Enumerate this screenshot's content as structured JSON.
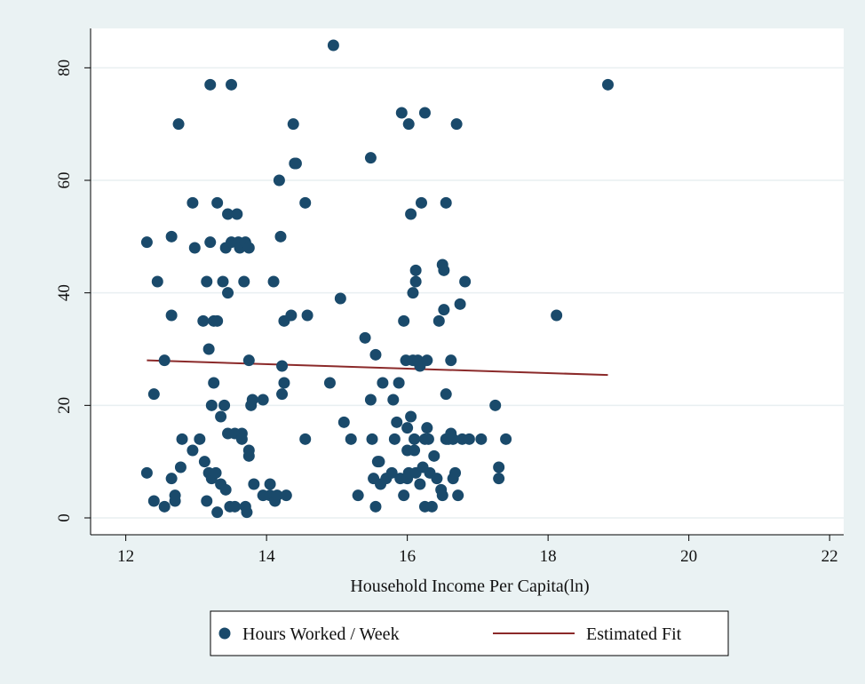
{
  "chart_data": {
    "type": "scatter",
    "title": "",
    "xlabel": "Household Income Per Capita(ln)",
    "ylabel": "",
    "xlim": [
      11.5,
      22.2
    ],
    "ylim": [
      -3,
      87
    ],
    "x_ticks": [
      "12",
      "14",
      "16",
      "18",
      "20",
      "22"
    ],
    "y_ticks": [
      "0",
      "20",
      "40",
      "60",
      "80"
    ],
    "grid": true,
    "legend_position": "bottom",
    "colors": {
      "points": "#1a4a6b",
      "fit": "#8b2a2a",
      "plot_bg": "#ffffff",
      "outer_bg": "#eaf2f3"
    },
    "series": [
      {
        "name": "Hours Worked / Week",
        "kind": "scatter",
        "points": [
          [
            12.3,
            49
          ],
          [
            12.3,
            8
          ],
          [
            12.4,
            3
          ],
          [
            12.4,
            22
          ],
          [
            12.45,
            42
          ],
          [
            12.55,
            28
          ],
          [
            12.55,
            2
          ],
          [
            12.65,
            36
          ],
          [
            12.65,
            50
          ],
          [
            12.7,
            4
          ],
          [
            12.7,
            3
          ],
          [
            12.75,
            70
          ],
          [
            12.78,
            9
          ],
          [
            12.8,
            14
          ],
          [
            12.65,
            7
          ],
          [
            12.95,
            56
          ],
          [
            12.95,
            12
          ],
          [
            12.98,
            48
          ],
          [
            13.05,
            14
          ],
          [
            13.1,
            35
          ],
          [
            13.12,
            10
          ],
          [
            13.15,
            42
          ],
          [
            13.15,
            3
          ],
          [
            13.18,
            8
          ],
          [
            13.18,
            30
          ],
          [
            13.2,
            49
          ],
          [
            13.2,
            77
          ],
          [
            13.22,
            20
          ],
          [
            13.22,
            7
          ],
          [
            13.25,
            24
          ],
          [
            13.25,
            35
          ],
          [
            13.28,
            8
          ],
          [
            13.3,
            35
          ],
          [
            13.3,
            1
          ],
          [
            13.3,
            56
          ],
          [
            13.35,
            18
          ],
          [
            13.35,
            6
          ],
          [
            13.38,
            42
          ],
          [
            13.4,
            20
          ],
          [
            13.42,
            5
          ],
          [
            13.42,
            48
          ],
          [
            13.45,
            40
          ],
          [
            13.45,
            54
          ],
          [
            13.45,
            15
          ],
          [
            13.48,
            2
          ],
          [
            13.5,
            49
          ],
          [
            13.5,
            77
          ],
          [
            13.55,
            15
          ],
          [
            13.55,
            2
          ],
          [
            13.58,
            54
          ],
          [
            13.6,
            49
          ],
          [
            13.62,
            48
          ],
          [
            13.65,
            15
          ],
          [
            13.65,
            14
          ],
          [
            13.68,
            42
          ],
          [
            13.7,
            2
          ],
          [
            13.7,
            49
          ],
          [
            13.72,
            1
          ],
          [
            13.75,
            11
          ],
          [
            13.75,
            48
          ],
          [
            13.78,
            20
          ],
          [
            13.8,
            21
          ],
          [
            13.82,
            6
          ],
          [
            13.75,
            28
          ],
          [
            13.75,
            12
          ],
          [
            13.95,
            21
          ],
          [
            13.95,
            4
          ],
          [
            14.05,
            6
          ],
          [
            14.05,
            4
          ],
          [
            14.1,
            42
          ],
          [
            14.12,
            3
          ],
          [
            14.15,
            4
          ],
          [
            14.18,
            60
          ],
          [
            14.2,
            50
          ],
          [
            14.22,
            22
          ],
          [
            14.22,
            27
          ],
          [
            14.25,
            35
          ],
          [
            14.25,
            24
          ],
          [
            14.28,
            4
          ],
          [
            14.35,
            36
          ],
          [
            14.38,
            70
          ],
          [
            14.4,
            63
          ],
          [
            14.42,
            63
          ],
          [
            14.55,
            56
          ],
          [
            14.55,
            14
          ],
          [
            14.58,
            36
          ],
          [
            14.9,
            24
          ],
          [
            14.95,
            84
          ],
          [
            15.05,
            39
          ],
          [
            15.1,
            17
          ],
          [
            15.2,
            14
          ],
          [
            15.3,
            4
          ],
          [
            15.4,
            32
          ],
          [
            15.48,
            21
          ],
          [
            15.48,
            64
          ],
          [
            15.5,
            14
          ],
          [
            15.52,
            7
          ],
          [
            15.55,
            29
          ],
          [
            15.55,
            2
          ],
          [
            15.58,
            10
          ],
          [
            15.6,
            10
          ],
          [
            15.62,
            6
          ],
          [
            15.65,
            24
          ],
          [
            15.7,
            7
          ],
          [
            15.78,
            8
          ],
          [
            15.8,
            21
          ],
          [
            15.82,
            14
          ],
          [
            15.85,
            17
          ],
          [
            15.88,
            24
          ],
          [
            15.9,
            7
          ],
          [
            15.92,
            72
          ],
          [
            15.95,
            35
          ],
          [
            15.95,
            4
          ],
          [
            15.98,
            28
          ],
          [
            16.0,
            16
          ],
          [
            16.0,
            12
          ],
          [
            16.0,
            7
          ],
          [
            16.02,
            70
          ],
          [
            16.02,
            8
          ],
          [
            16.05,
            54
          ],
          [
            16.05,
            18
          ],
          [
            16.08,
            40
          ],
          [
            16.08,
            28
          ],
          [
            16.1,
            14
          ],
          [
            16.1,
            12
          ],
          [
            16.12,
            44
          ],
          [
            16.12,
            42
          ],
          [
            16.12,
            8
          ],
          [
            16.15,
            28
          ],
          [
            16.18,
            27
          ],
          [
            16.18,
            6
          ],
          [
            16.2,
            56
          ],
          [
            16.22,
            9
          ],
          [
            16.25,
            14
          ],
          [
            16.25,
            2
          ],
          [
            16.25,
            72
          ],
          [
            16.28,
            28
          ],
          [
            16.28,
            16
          ],
          [
            16.3,
            14
          ],
          [
            16.32,
            8
          ],
          [
            16.35,
            2
          ],
          [
            16.38,
            11
          ],
          [
            16.42,
            7
          ],
          [
            16.45,
            35
          ],
          [
            16.48,
            5
          ],
          [
            16.5,
            45
          ],
          [
            16.5,
            4
          ],
          [
            16.52,
            44
          ],
          [
            16.52,
            37
          ],
          [
            16.55,
            14
          ],
          [
            16.55,
            22
          ],
          [
            16.55,
            56
          ],
          [
            16.58,
            14
          ],
          [
            16.62,
            15
          ],
          [
            16.62,
            28
          ],
          [
            16.65,
            14
          ],
          [
            16.65,
            7
          ],
          [
            16.68,
            8
          ],
          [
            16.7,
            70
          ],
          [
            16.72,
            4
          ],
          [
            16.75,
            38
          ],
          [
            16.78,
            14
          ],
          [
            16.82,
            42
          ],
          [
            16.88,
            14
          ],
          [
            17.05,
            14
          ],
          [
            17.25,
            20
          ],
          [
            17.3,
            9
          ],
          [
            17.3,
            7
          ],
          [
            17.4,
            14
          ],
          [
            18.12,
            36
          ],
          [
            18.85,
            77
          ]
        ]
      },
      {
        "name": "Estimated Fit",
        "kind": "line",
        "points": [
          [
            12.3,
            28
          ],
          [
            18.85,
            25.4
          ]
        ]
      }
    ]
  }
}
